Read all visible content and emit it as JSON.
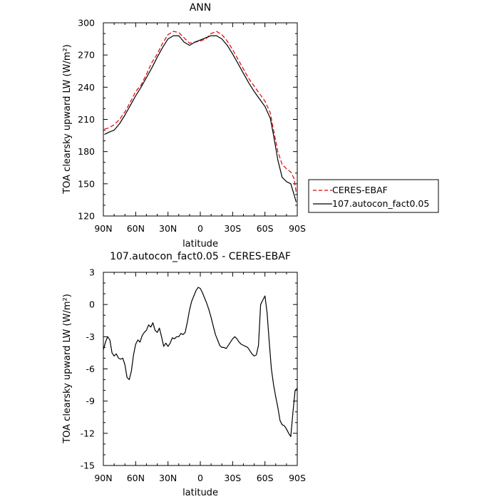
{
  "chart_data": [
    {
      "type": "line",
      "title": "ANN",
      "xlabel": "latitude",
      "ylabel": "TOA clearsky upward LW (W/m²)",
      "xticks": [
        "90N",
        "60N",
        "30N",
        "0",
        "30S",
        "60S",
        "90S"
      ],
      "xtick_values": [
        90,
        60,
        30,
        0,
        -30,
        -60,
        -90
      ],
      "xlim": [
        90,
        -90
      ],
      "ylim": [
        120,
        300
      ],
      "yticks": [
        120,
        150,
        180,
        210,
        240,
        270,
        300
      ],
      "legend": "right-outside",
      "series": [
        {
          "name": "CERES-EBAF",
          "color": "#dd0000",
          "dashed": true,
          "x": [
            89,
            85,
            80,
            75,
            70,
            65,
            60,
            55,
            50,
            45,
            40,
            35,
            30,
            25,
            20,
            15,
            10,
            5,
            0,
            -5,
            -10,
            -15,
            -20,
            -25,
            -30,
            -35,
            -40,
            -45,
            -50,
            -55,
            -60,
            -65,
            -68,
            -72,
            -76,
            -80,
            -84,
            -87,
            -89
          ],
          "values": [
            201,
            202,
            205,
            210,
            217,
            226,
            236,
            242,
            252,
            263,
            271,
            281,
            289,
            292,
            291,
            286,
            281,
            282,
            283,
            285,
            290,
            292,
            289,
            283,
            275,
            266,
            257,
            248,
            241,
            234,
            227,
            216,
            200,
            180,
            168,
            164,
            161,
            155,
            142
          ]
        },
        {
          "name": "107.autocon_fact0.05",
          "color": "#000000",
          "dashed": false,
          "x": [
            89,
            85,
            80,
            75,
            70,
            65,
            60,
            55,
            50,
            45,
            40,
            35,
            30,
            25,
            20,
            15,
            10,
            5,
            0,
            -5,
            -10,
            -15,
            -20,
            -25,
            -30,
            -35,
            -40,
            -45,
            -50,
            -55,
            -60,
            -65,
            -68,
            -72,
            -76,
            -80,
            -84,
            -87,
            -89
          ],
          "values": [
            196,
            198,
            200,
            206,
            214,
            223,
            232,
            240,
            249,
            258,
            268,
            277,
            285,
            288,
            288,
            282,
            279,
            282,
            284,
            286,
            288,
            288,
            285,
            279,
            271,
            262,
            253,
            244,
            236,
            229,
            222,
            211,
            195,
            172,
            156,
            152,
            150,
            140,
            133
          ]
        }
      ]
    },
    {
      "type": "line",
      "title": "107.autocon_fact0.05 - CERES-EBAF",
      "xlabel": "latitude",
      "ylabel": "TOA clearsky upward LW (W/m²)",
      "xticks": [
        "90N",
        "60N",
        "30N",
        "0",
        "30S",
        "60S",
        "90S"
      ],
      "xtick_values": [
        90,
        60,
        30,
        0,
        -30,
        -60,
        -90
      ],
      "xlim": [
        90,
        -90
      ],
      "ylim": [
        -15,
        3
      ],
      "yticks": [
        -15,
        -12,
        -9,
        -6,
        -3,
        0,
        3
      ],
      "series": [
        {
          "color": "#000000",
          "x": [
            90,
            88,
            86,
            84,
            82,
            80,
            78,
            76,
            74,
            72,
            70,
            68,
            66,
            64,
            62,
            60,
            58,
            56,
            54,
            52,
            50,
            48,
            46,
            44,
            42,
            40,
            38,
            36,
            34,
            32,
            30,
            28,
            26,
            24,
            22,
            20,
            18,
            16,
            14,
            12,
            10,
            8,
            6,
            4,
            2,
            0,
            -2,
            -4,
            -6,
            -8,
            -10,
            -12,
            -14,
            -16,
            -18,
            -20,
            -22,
            -24,
            -26,
            -28,
            -30,
            -32,
            -34,
            -36,
            -38,
            -40,
            -42,
            -44,
            -46,
            -48,
            -50,
            -52,
            -54,
            -56,
            -58,
            -60,
            -62,
            -64,
            -66,
            -68,
            -70,
            -72,
            -74,
            -76,
            -78,
            -80,
            -82,
            -84,
            -86,
            -88,
            -90
          ],
          "values": [
            -4.2,
            -3.5,
            -3.0,
            -3.3,
            -4.5,
            -4.8,
            -4.6,
            -5.0,
            -5.1,
            -5.0,
            -5.6,
            -6.8,
            -7.0,
            -6.2,
            -4.7,
            -3.7,
            -3.3,
            -3.5,
            -2.9,
            -2.6,
            -2.4,
            -1.9,
            -2.1,
            -1.7,
            -2.4,
            -2.6,
            -2.2,
            -3.0,
            -3.9,
            -3.6,
            -3.9,
            -3.6,
            -3.1,
            -3.2,
            -3.0,
            -3.0,
            -2.7,
            -2.8,
            -2.6,
            -1.6,
            -0.5,
            0.3,
            0.8,
            1.3,
            1.6,
            1.5,
            1.1,
            0.6,
            0.1,
            -0.5,
            -1.2,
            -2.0,
            -2.8,
            -3.3,
            -3.8,
            -4.0,
            -4.0,
            -4.1,
            -3.8,
            -3.5,
            -3.2,
            -3.0,
            -3.2,
            -3.5,
            -3.7,
            -3.8,
            -3.9,
            -4.0,
            -4.3,
            -4.6,
            -4.8,
            -4.7,
            -3.8,
            0.0,
            0.4,
            0.8,
            -0.8,
            -3.5,
            -6.0,
            -7.5,
            -8.6,
            -9.6,
            -10.8,
            -11.2,
            -11.3,
            -11.6,
            -12.0,
            -12.3,
            -10.0,
            -8.0,
            -7.8
          ]
        }
      ]
    }
  ]
}
